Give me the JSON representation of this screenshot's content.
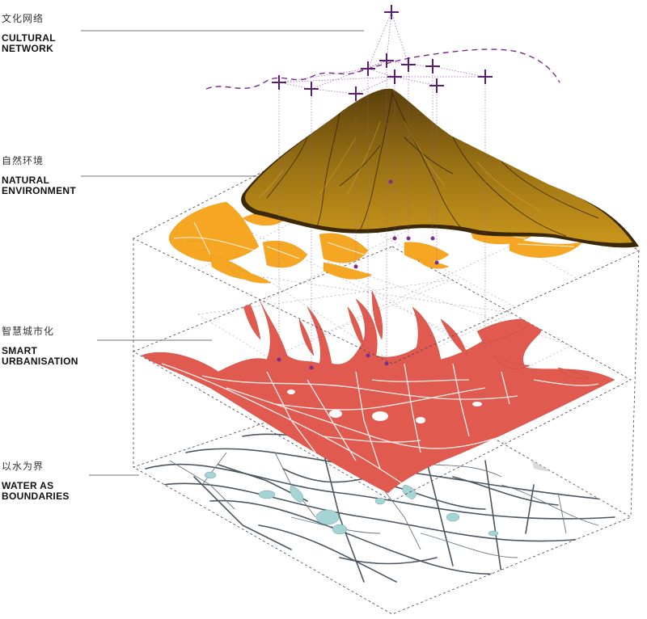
{
  "layers": [
    {
      "key": "cultural",
      "zh": "文化网络",
      "en_line1": "CULTURAL",
      "en_line2": "NETWORK"
    },
    {
      "key": "natural",
      "zh": "自然环境",
      "en_line1": "NATURAL",
      "en_line2": "ENVIRONMENT"
    },
    {
      "key": "smart",
      "zh": "智慧城市化",
      "en_line1": "SMART",
      "en_line2": "URBANISATION"
    },
    {
      "key": "water",
      "zh": "以水为界",
      "en_line1": "WATER AS",
      "en_line2": "BOUNDARIES"
    }
  ],
  "colors": {
    "cultural": "#6b2a86",
    "mountain_dark": "#7a5a14",
    "mountain_mid": "#b8860b",
    "natural": "#f5a623",
    "urban": "#e05a4f",
    "water": "#a6d3d3",
    "road": "#4a5660",
    "grid": "#555555"
  }
}
